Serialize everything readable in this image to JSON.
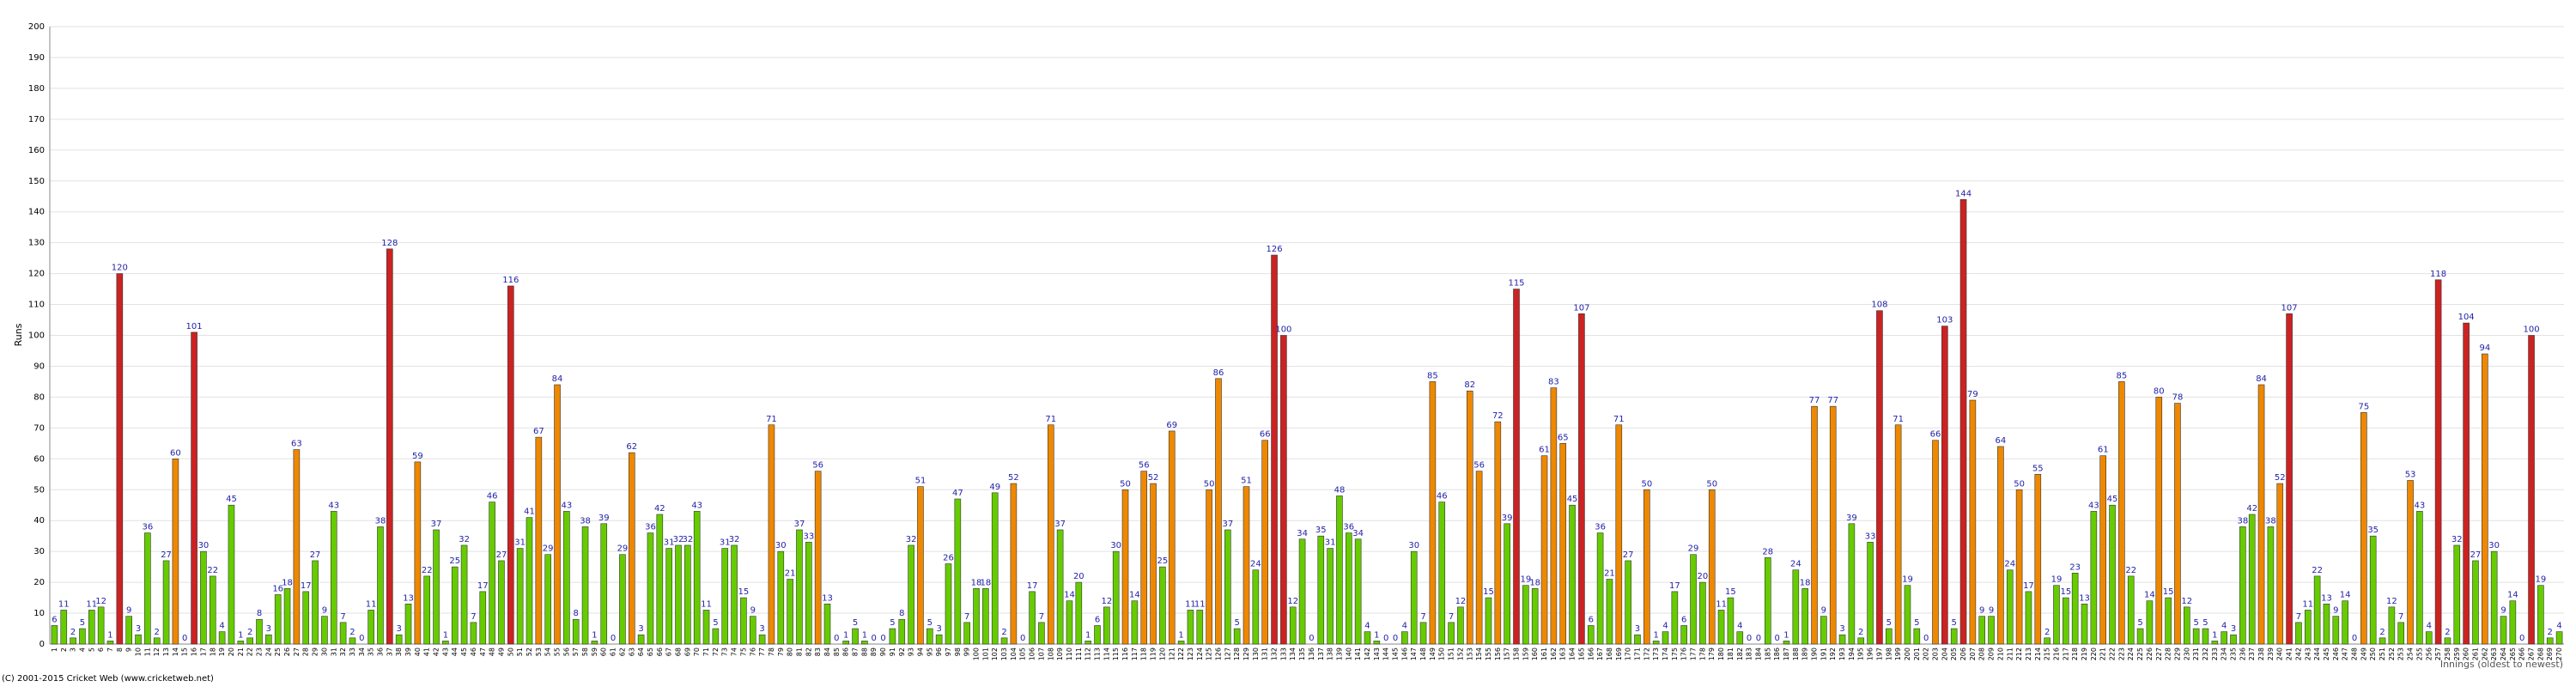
{
  "chart_data": {
    "type": "bar",
    "y_label": "Runs",
    "x_label": "Innings (oldest to newest)",
    "footer": "(C) 2001-2015 Cricket Web (www.cricketweb.net)",
    "ylim": [
      0,
      200
    ],
    "yticks": [
      0,
      10,
      20,
      30,
      40,
      50,
      60,
      70,
      80,
      90,
      100,
      110,
      120,
      130,
      140,
      150,
      160,
      170,
      180,
      190,
      200
    ],
    "grid": true,
    "categories": [
      1,
      2,
      3,
      4,
      5,
      6,
      7,
      8,
      9,
      10,
      11,
      12,
      13,
      14,
      15,
      16,
      17,
      18,
      19,
      20,
      21,
      22,
      23,
      24,
      25,
      26,
      27,
      28,
      29,
      30,
      31,
      32,
      33,
      34,
      35,
      36,
      37,
      38,
      39,
      40,
      41,
      42,
      43,
      44,
      45,
      46,
      47,
      48,
      49,
      50,
      51,
      52,
      53,
      54,
      55,
      56,
      57,
      58,
      59,
      60,
      61,
      62,
      63,
      64,
      65,
      66,
      67,
      68,
      69,
      70,
      71,
      72,
      73,
      74,
      75,
      76,
      77,
      78,
      79,
      80,
      81,
      82,
      83,
      84,
      85,
      86,
      87,
      88,
      89,
      90,
      91,
      92,
      93,
      94,
      95,
      96,
      97,
      98,
      99,
      100,
      101,
      102,
      103,
      104,
      105,
      106,
      107,
      108,
      109,
      110,
      111,
      112,
      113,
      114,
      115,
      116,
      117,
      118,
      119,
      120,
      121,
      122,
      123,
      124,
      125,
      126,
      127,
      128,
      129,
      130,
      131,
      132,
      133,
      134,
      135,
      136,
      137,
      138,
      139,
      140,
      141,
      142,
      143,
      144,
      145,
      146,
      147,
      148,
      149,
      150,
      151,
      152,
      153,
      154,
      155,
      156,
      157,
      158,
      159,
      160,
      161,
      162,
      163,
      164,
      165,
      166,
      167,
      168,
      169,
      170,
      171,
      172,
      173,
      174,
      175,
      176,
      177,
      178,
      179,
      180,
      181,
      182,
      183,
      184,
      185,
      186,
      187,
      188,
      189,
      190,
      191,
      192,
      193,
      194,
      195,
      196,
      197,
      198,
      199,
      200,
      201,
      202,
      203,
      204,
      205,
      206,
      207,
      208,
      209,
      210,
      211,
      212,
      213,
      214,
      215,
      216,
      217,
      218,
      219,
      220,
      221,
      222,
      223,
      224,
      225,
      226,
      227,
      228,
      229,
      230,
      231,
      232,
      233,
      234,
      235,
      236,
      237,
      238,
      239,
      240,
      241,
      242,
      243,
      244,
      245,
      246,
      247,
      248,
      249,
      250,
      251,
      252,
      253,
      254,
      255,
      256,
      257,
      258,
      259,
      260,
      261,
      262,
      263,
      264,
      265,
      266,
      267,
      268,
      269,
      270
    ],
    "values": [
      6,
      11,
      2,
      5,
      11,
      12,
      1,
      120,
      9,
      3,
      36,
      2,
      27,
      60,
      0,
      101,
      30,
      22,
      4,
      45,
      1,
      2,
      8,
      3,
      16,
      18,
      63,
      17,
      27,
      9,
      43,
      7,
      2,
      0,
      11,
      38,
      128,
      3,
      13,
      59,
      22,
      37,
      1,
      25,
      32,
      7,
      17,
      46,
      27,
      116,
      31,
      41,
      67,
      29,
      84,
      43,
      8,
      38,
      1,
      39,
      0,
      29,
      62,
      3,
      36,
      42,
      31,
      32,
      32,
      43,
      11,
      5,
      31,
      32,
      15,
      9,
      3,
      71,
      30,
      21,
      37,
      33,
      56,
      13,
      0,
      1,
      5,
      1,
      0,
      0,
      5,
      8,
      32,
      51,
      5,
      3,
      26,
      47,
      7,
      18,
      18,
      49,
      2,
      52,
      0,
      17,
      7,
      71,
      37,
      14,
      20,
      1,
      6,
      12,
      30,
      50,
      14,
      56,
      52,
      25,
      69,
      1,
      11,
      11,
      50,
      86,
      37,
      5,
      51,
      24,
      66,
      126,
      100,
      12,
      34,
      0,
      35,
      31,
      48,
      36,
      34,
      4,
      1,
      0,
      0,
      4,
      30,
      7,
      85,
      46,
      7,
      12,
      82,
      56,
      15,
      72,
      39,
      115,
      19,
      18,
      61,
      83,
      65,
      45,
      107,
      6,
      36,
      21,
      71,
      27,
      3,
      50,
      1,
      4,
      17,
      6,
      29,
      20,
      50,
      11,
      15,
      4,
      0,
      0,
      28,
      0,
      1,
      24,
      18,
      77,
      9,
      77,
      3,
      39,
      2,
      33,
      108,
      5,
      71,
      19,
      5,
      0,
      66,
      103,
      5,
      144,
      79,
      9,
      9,
      64,
      24,
      50,
      17,
      55,
      2,
      19,
      15,
      23,
      13,
      43,
      61,
      45,
      85,
      22,
      5,
      14,
      80,
      15,
      78,
      12,
      5,
      5,
      1,
      4,
      3,
      38,
      42,
      84,
      38,
      52,
      107,
      7,
      11,
      22,
      13,
      9,
      14,
      0,
      75,
      35,
      2,
      12,
      7,
      53,
      43,
      4,
      118,
      2,
      32,
      104,
      27,
      94,
      30,
      9,
      14,
      0,
      100,
      19,
      2,
      4
    ],
    "colors": [
      "#6c0",
      "#6c0",
      "#6c0",
      "#6c0",
      "#6c0",
      "#6c0",
      "#6c0",
      "#c22",
      "#6c0",
      "#6c0",
      "#6c0",
      "#6c0",
      "#6c0",
      "#e80",
      "#6c0",
      "#c22",
      "#6c0",
      "#6c0",
      "#6c0",
      "#6c0",
      "#6c0",
      "#6c0",
      "#6c0",
      "#6c0",
      "#6c0",
      "#6c0",
      "#e80",
      "#6c0",
      "#6c0",
      "#6c0",
      "#6c0",
      "#6c0",
      "#6c0",
      "#6c0",
      "#6c0",
      "#6c0",
      "#c22",
      "#6c0",
      "#6c0",
      "#e80",
      "#6c0",
      "#6c0",
      "#6c0",
      "#6c0",
      "#6c0",
      "#6c0",
      "#6c0",
      "#6c0",
      "#6c0",
      "#c22",
      "#6c0",
      "#6c0",
      "#e80",
      "#6c0",
      "#e80",
      "#6c0",
      "#6c0",
      "#6c0",
      "#6c0",
      "#6c0",
      "#6c0",
      "#6c0",
      "#e80",
      "#6c0",
      "#6c0",
      "#6c0",
      "#6c0",
      "#6c0",
      "#6c0",
      "#6c0",
      "#6c0",
      "#6c0",
      "#6c0",
      "#6c0",
      "#6c0",
      "#6c0",
      "#6c0",
      "#e80",
      "#6c0",
      "#6c0",
      "#6c0",
      "#6c0",
      "#e80",
      "#6c0",
      "#6c0",
      "#6c0",
      "#6c0",
      "#6c0",
      "#6c0",
      "#6c0",
      "#6c0",
      "#6c0",
      "#6c0",
      "#e80",
      "#6c0",
      "#6c0",
      "#6c0",
      "#6c0",
      "#6c0",
      "#6c0",
      "#6c0",
      "#6c0",
      "#6c0",
      "#e80",
      "#6c0",
      "#6c0",
      "#6c0",
      "#e80",
      "#6c0",
      "#6c0",
      "#6c0",
      "#6c0",
      "#6c0",
      "#6c0",
      "#6c0",
      "#e80",
      "#6c0",
      "#e80",
      "#e80",
      "#6c0",
      "#e80",
      "#6c0",
      "#6c0",
      "#6c0",
      "#e80",
      "#e80",
      "#6c0",
      "#6c0",
      "#e80",
      "#6c0",
      "#e80",
      "#c22",
      "#c22",
      "#6c0",
      "#6c0",
      "#6c0",
      "#6c0",
      "#6c0",
      "#6c0",
      "#6c0",
      "#6c0",
      "#6c0",
      "#6c0",
      "#6c0",
      "#6c0",
      "#6c0",
      "#6c0",
      "#6c0",
      "#e80",
      "#6c0",
      "#6c0",
      "#6c0",
      "#e80",
      "#e80",
      "#6c0",
      "#e80",
      "#6c0",
      "#c22",
      "#6c0",
      "#6c0",
      "#e80",
      "#e80",
      "#e80",
      "#6c0",
      "#c22",
      "#6c0",
      "#6c0",
      "#6c0",
      "#e80",
      "#6c0",
      "#6c0",
      "#e80",
      "#6c0",
      "#6c0",
      "#6c0",
      "#6c0",
      "#6c0",
      "#6c0",
      "#e80",
      "#6c0",
      "#6c0",
      "#6c0",
      "#6c0",
      "#6c0",
      "#6c0",
      "#6c0",
      "#6c0",
      "#6c0",
      "#6c0",
      "#e80",
      "#6c0",
      "#e80",
      "#6c0",
      "#6c0",
      "#6c0",
      "#6c0",
      "#c22",
      "#6c0",
      "#e80",
      "#6c0",
      "#6c0",
      "#6c0",
      "#e80",
      "#c22",
      "#6c0",
      "#c22",
      "#e80",
      "#6c0",
      "#6c0",
      "#e80",
      "#6c0",
      "#e80",
      "#6c0",
      "#e80",
      "#6c0",
      "#6c0",
      "#6c0",
      "#6c0",
      "#6c0",
      "#6c0",
      "#e80",
      "#6c0",
      "#e80",
      "#6c0",
      "#6c0",
      "#6c0",
      "#e80",
      "#6c0",
      "#e80",
      "#6c0",
      "#6c0",
      "#6c0",
      "#6c0",
      "#6c0",
      "#6c0",
      "#6c0",
      "#6c0",
      "#e80",
      "#6c0",
      "#e80",
      "#c22",
      "#6c0",
      "#6c0",
      "#6c0",
      "#6c0",
      "#6c0",
      "#6c0",
      "#6c0",
      "#e80",
      "#6c0",
      "#6c0",
      "#6c0",
      "#6c0",
      "#e80",
      "#6c0",
      "#6c0",
      "#c22",
      "#6c0",
      "#6c0",
      "#c22",
      "#6c0",
      "#e80",
      "#6c0",
      "#6c0",
      "#6c0",
      "#6c0",
      "#c22",
      "#6c0",
      "#6c0",
      "#6c0"
    ]
  }
}
